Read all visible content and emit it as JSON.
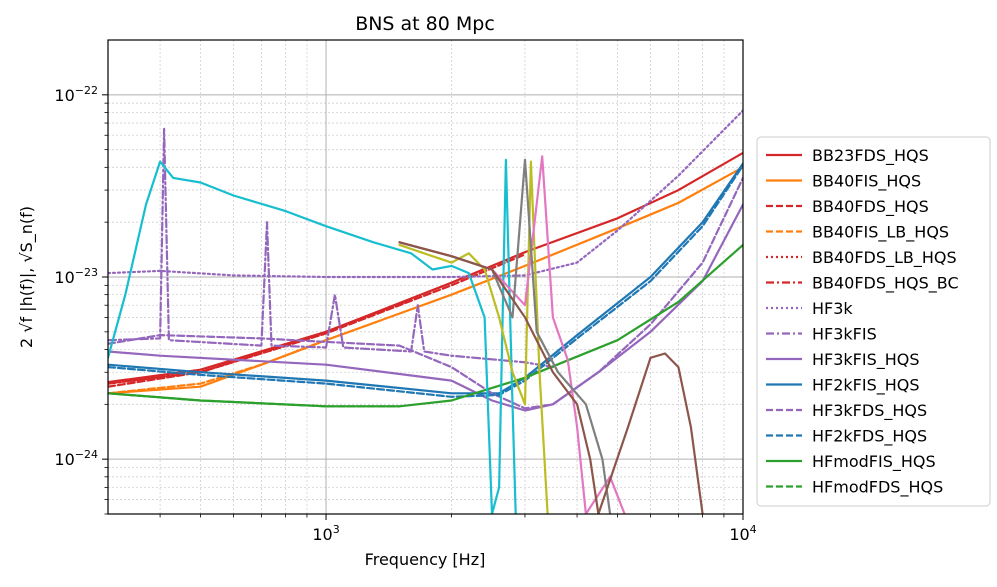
{
  "chart_data": {
    "type": "line",
    "title": "BNS at 80 Mpc",
    "xlabel": "Frequency [Hz]",
    "ylabel": "2 √f |h(f)|, √S_n(f)",
    "xscale": "log",
    "yscale": "log",
    "xlim": [
      300,
      10000
    ],
    "ylim": [
      5e-25,
      2e-22
    ],
    "grid": true,
    "legend_position": "outside-right",
    "x_ticks": [
      {
        "value": 1000,
        "base": "10",
        "exp": "3"
      },
      {
        "value": 10000,
        "base": "10",
        "exp": "4"
      }
    ],
    "y_ticks": [
      {
        "value": 1e-24,
        "base": "10",
        "exp": "−24"
      },
      {
        "value": 1e-23,
        "base": "10",
        "exp": "−23"
      },
      {
        "value": 1e-22,
        "base": "10",
        "exp": "−22"
      }
    ],
    "series": [
      {
        "name": "BB23FDS_HQS",
        "color": "#d62728",
        "dash": "solid",
        "points": [
          [
            300,
            2.65e-24
          ],
          [
            500,
            3.1e-24
          ],
          [
            1000,
            5e-24
          ],
          [
            2000,
            9.3e-24
          ],
          [
            3000,
            1.37e-23
          ],
          [
            5000,
            2.1e-23
          ],
          [
            7000,
            3e-23
          ],
          [
            10000,
            4.8e-23
          ]
        ]
      },
      {
        "name": "BB40FIS_HQS",
        "color": "#ff7f0e",
        "dash": "solid",
        "points": [
          [
            300,
            2.3e-24
          ],
          [
            500,
            2.5e-24
          ],
          [
            700,
            3.3e-24
          ],
          [
            1000,
            4.5e-24
          ],
          [
            2000,
            8e-24
          ],
          [
            3000,
            1.15e-23
          ],
          [
            5000,
            1.85e-23
          ],
          [
            7000,
            2.55e-23
          ],
          [
            10000,
            4e-23
          ]
        ]
      },
      {
        "name": "BB40FDS_HQS",
        "color": "#d62728",
        "dash": "dashed",
        "points": [
          [
            300,
            2.5e-24
          ],
          [
            500,
            3e-24
          ],
          [
            1000,
            4.9e-24
          ],
          [
            2000,
            9e-24
          ],
          [
            3000,
            1.33e-23
          ]
        ]
      },
      {
        "name": "BB40FIS_LB_HQS",
        "color": "#ff7f0e",
        "dash": "dashed",
        "points": [
          [
            300,
            2.3e-24
          ],
          [
            500,
            2.6e-24
          ],
          [
            700,
            3.3e-24
          ],
          [
            1000,
            4.5e-24
          ]
        ]
      },
      {
        "name": "BB40FDS_LB_HQS",
        "color": "#d62728",
        "dash": "dotted",
        "points": [
          [
            300,
            2.6e-24
          ],
          [
            500,
            3e-24
          ],
          [
            1000,
            4.9e-24
          ]
        ]
      },
      {
        "name": "BB40FDS_HQS_BC",
        "color": "#d62728",
        "dash": "dashdot",
        "points": [
          [
            300,
            2.6e-24
          ],
          [
            500,
            3e-24
          ],
          [
            1000,
            5e-24
          ],
          [
            1600,
            7.5e-24
          ]
        ]
      },
      {
        "name": "HF3k",
        "color": "#9467bd",
        "dash": "dotted",
        "points": [
          [
            300,
            1.05e-23
          ],
          [
            400,
            1.08e-23
          ],
          [
            600,
            1.02e-23
          ],
          [
            1000,
            1e-23
          ],
          [
            2000,
            1e-23
          ],
          [
            3000,
            1.02e-23
          ],
          [
            4000,
            1.2e-23
          ],
          [
            5000,
            1.8e-23
          ],
          [
            7000,
            3.6e-23
          ],
          [
            10000,
            8.2e-23
          ]
        ]
      },
      {
        "name": "HF3kFIS",
        "color": "#9467bd",
        "dash": "dashdot",
        "points": [
          [
            300,
            4.5e-24
          ],
          [
            400,
            4.6e-24
          ],
          [
            409,
            6.5e-23
          ],
          [
            420,
            4.5e-24
          ],
          [
            700,
            4.2e-24
          ],
          [
            722,
            2e-23
          ],
          [
            740,
            4.2e-24
          ],
          [
            1000,
            4.1e-24
          ],
          [
            1050,
            8e-24
          ],
          [
            1100,
            4.1e-24
          ],
          [
            1600,
            3.9e-24
          ],
          [
            1660,
            7e-24
          ],
          [
            1720,
            3.9e-24
          ],
          [
            2000,
            3.7e-24
          ],
          [
            3000,
            3.4e-24
          ],
          [
            3500,
            3.2e-24
          ]
        ]
      },
      {
        "name": "HF3kFIS_HQS",
        "color": "#9467bd",
        "dash": "solid",
        "points": [
          [
            300,
            3.9e-24
          ],
          [
            400,
            3.7e-24
          ],
          [
            1000,
            3.3e-24
          ],
          [
            2000,
            2.7e-24
          ],
          [
            2500,
            2.1e-24
          ],
          [
            3000,
            1.85e-24
          ],
          [
            3500,
            2e-24
          ],
          [
            4500,
            3e-24
          ],
          [
            6000,
            5e-24
          ],
          [
            8000,
            9.5e-24
          ],
          [
            10000,
            2.5e-23
          ]
        ]
      },
      {
        "name": "HF2kFIS_HQS",
        "color": "#1f77b4",
        "dash": "solid",
        "points": [
          [
            300,
            3.3e-24
          ],
          [
            500,
            3e-24
          ],
          [
            1000,
            2.7e-24
          ],
          [
            2000,
            2.3e-24
          ],
          [
            2600,
            2.3e-24
          ],
          [
            3000,
            2.8e-24
          ],
          [
            4000,
            4.8e-24
          ],
          [
            6000,
            1e-23
          ],
          [
            8000,
            2e-23
          ],
          [
            10000,
            4.2e-23
          ]
        ]
      },
      {
        "name": "HF3kFDS_HQS",
        "color": "#9467bd",
        "dash": "dashed",
        "points": [
          [
            300,
            4.3e-24
          ],
          [
            400,
            4.8e-24
          ],
          [
            700,
            4.6e-24
          ],
          [
            1000,
            4.4e-24
          ],
          [
            1500,
            4.2e-24
          ],
          [
            2000,
            3.2e-24
          ],
          [
            2500,
            2.3e-24
          ],
          [
            3000,
            1.9e-24
          ],
          [
            3500,
            2e-24
          ],
          [
            4500,
            3e-24
          ],
          [
            6000,
            5.5e-24
          ],
          [
            8000,
            1.2e-23
          ],
          [
            10000,
            3.5e-23
          ]
        ]
      },
      {
        "name": "HF2kFDS_HQS",
        "color": "#1f77b4",
        "dash": "dashed",
        "points": [
          [
            300,
            3.2e-24
          ],
          [
            500,
            2.9e-24
          ],
          [
            1000,
            2.6e-24
          ],
          [
            2000,
            2.2e-24
          ],
          [
            2600,
            2.25e-24
          ],
          [
            3000,
            2.7e-24
          ],
          [
            4000,
            4.6e-24
          ],
          [
            6000,
            9.5e-24
          ],
          [
            8000,
            1.9e-23
          ],
          [
            10000,
            4.1e-23
          ]
        ]
      },
      {
        "name": "HFmodFIS_HQS",
        "color": "#2ca02c",
        "dash": "solid",
        "points": [
          [
            300,
            2.3e-24
          ],
          [
            500,
            2.1e-24
          ],
          [
            1000,
            1.95e-24
          ],
          [
            1500,
            1.95e-24
          ],
          [
            2000,
            2.1e-24
          ],
          [
            3000,
            2.8e-24
          ],
          [
            5000,
            4.5e-24
          ],
          [
            7000,
            7.3e-24
          ],
          [
            10000,
            1.5e-23
          ]
        ]
      },
      {
        "name": "HFmodFDS_HQS",
        "color": "#2ca02c",
        "dash": "dashed",
        "points": [
          [
            300,
            2.3e-24
          ],
          [
            500,
            2.1e-24
          ],
          [
            1000,
            1.95e-24
          ],
          [
            1500,
            1.95e-24
          ]
        ]
      },
      {
        "color": "#17becf",
        "dash": "solid",
        "points": [
          [
            300,
            3.6e-24
          ],
          [
            330,
            8e-24
          ],
          [
            370,
            2.5e-23
          ],
          [
            400,
            4.3e-23
          ],
          [
            430,
            3.5e-23
          ],
          [
            500,
            3.3e-23
          ],
          [
            600,
            2.8e-23
          ],
          [
            800,
            2.3e-23
          ],
          [
            1000,
            1.9e-23
          ],
          [
            1300,
            1.55e-23
          ],
          [
            1600,
            1.35e-23
          ],
          [
            1800,
            1.1e-23
          ],
          [
            2000,
            1.15e-23
          ],
          [
            2200,
            1.05e-23
          ],
          [
            2400,
            6e-24
          ],
          [
            2500,
            5e-25
          ],
          [
            2600,
            7e-25
          ],
          [
            2700,
            4.4e-23
          ],
          [
            2800,
            2e-24
          ],
          [
            2850,
            5e-25
          ]
        ]
      },
      {
        "color": "#bcbd22",
        "dash": "solid",
        "points": [
          [
            1500,
            1.5e-23
          ],
          [
            1800,
            1.3e-23
          ],
          [
            2000,
            1.2e-23
          ],
          [
            2200,
            1.35e-23
          ],
          [
            2400,
            1.1e-23
          ],
          [
            2600,
            6e-24
          ],
          [
            2800,
            3e-24
          ],
          [
            3000,
            2e-24
          ],
          [
            3100,
            4.3e-23
          ],
          [
            3250,
            3e-24
          ],
          [
            3400,
            5e-25
          ]
        ]
      },
      {
        "color": "#e377c2",
        "dash": "solid",
        "points": [
          [
            1500,
            1.55e-23
          ],
          [
            2000,
            1.3e-23
          ],
          [
            2500,
            1.1e-23
          ],
          [
            3000,
            7e-24
          ],
          [
            3300,
            4.6e-23
          ],
          [
            3500,
            6e-24
          ],
          [
            3800,
            3.5e-24
          ],
          [
            4000,
            1.5e-24
          ],
          [
            4200,
            5e-25
          ],
          [
            4800,
            8e-25
          ],
          [
            5200,
            5e-25
          ]
        ]
      },
      {
        "color": "#7f7f7f",
        "dash": "solid",
        "points": [
          [
            1500,
            1.55e-23
          ],
          [
            2000,
            1.3e-23
          ],
          [
            2500,
            1.1e-23
          ],
          [
            2800,
            6e-24
          ],
          [
            3000,
            4.4e-23
          ],
          [
            3200,
            5e-24
          ],
          [
            3600,
            3e-24
          ],
          [
            4200,
            2e-24
          ],
          [
            4600,
            1e-24
          ],
          [
            4800,
            5e-25
          ]
        ]
      },
      {
        "color": "#8c564b",
        "dash": "solid",
        "points": [
          [
            1500,
            1.55e-23
          ],
          [
            2000,
            1.3e-23
          ],
          [
            2500,
            1.1e-23
          ],
          [
            3000,
            6e-24
          ],
          [
            3500,
            3e-24
          ],
          [
            4000,
            2e-24
          ],
          [
            4300,
            1e-24
          ],
          [
            4500,
            5e-25
          ],
          [
            5300,
            1.5e-24
          ],
          [
            6000,
            3.6e-24
          ],
          [
            6500,
            3.8e-24
          ],
          [
            7000,
            3.2e-24
          ],
          [
            7500,
            1.5e-24
          ],
          [
            8000,
            5e-25
          ]
        ]
      }
    ]
  }
}
